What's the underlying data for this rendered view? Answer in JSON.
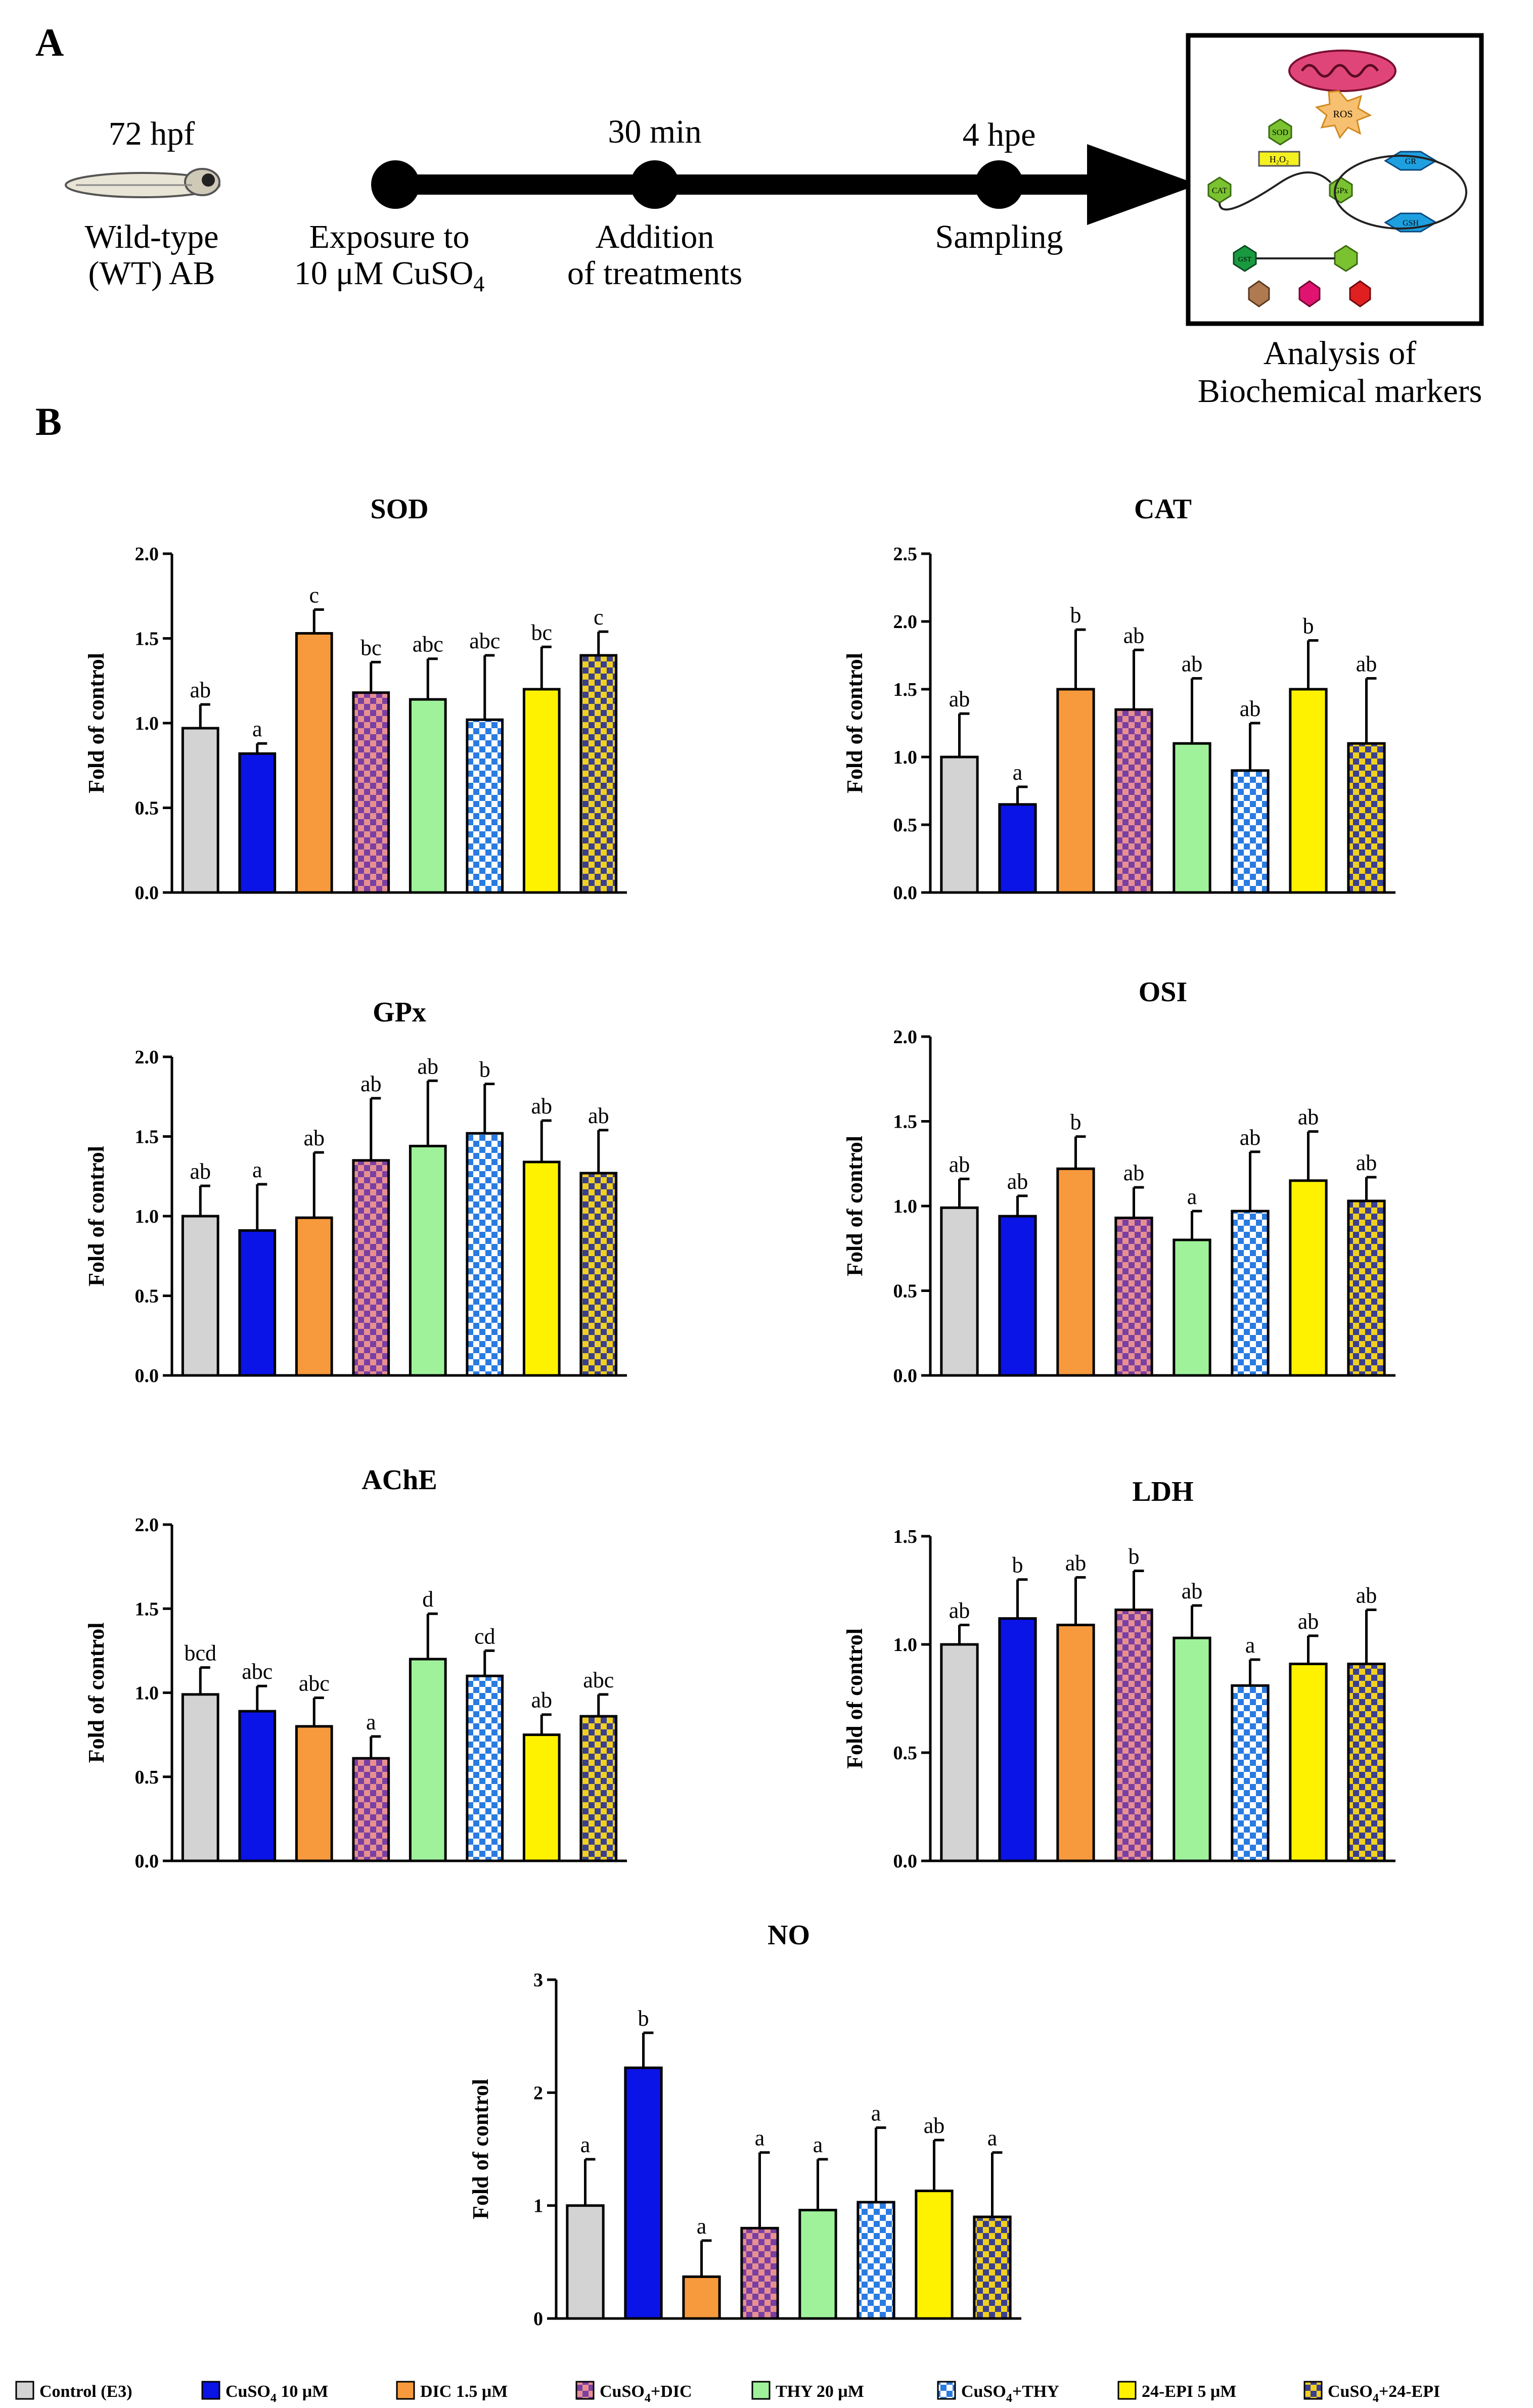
{
  "panels": {
    "a": "A",
    "b": "B"
  },
  "timeline": {
    "larva_age": "72 hpf",
    "strain_line1": "Wild-type",
    "strain_line2": "(WT) AB",
    "step1_line1": "Exposure to",
    "step1_line2_prefix": "10 μM CuSO",
    "step1_line2_sub": "4",
    "step2_time": "30 min",
    "step2_line1": "Addition",
    "step2_line2": "of treatments",
    "step3_time": "4 hpe",
    "step3_label": "Sampling",
    "analysis_line1": "Analysis of",
    "analysis_line2": "Biochemical markers",
    "diagram_texts": {
      "ros": "ROS",
      "h2o2": "H₂O₂",
      "enzyme_a": "GR",
      "enzyme_b": "GSH",
      "enzyme_c": "GST",
      "n1": "SOD",
      "n2": "CAT",
      "n3": "GPx"
    }
  },
  "colors": {
    "control": "#d3d3d3",
    "cuso4": "#0a14e6",
    "dic": "#f79a3d",
    "cuso4_dic_a": "#7a3fa3",
    "cuso4_dic_b": "#e89090",
    "thy": "#9ff29a",
    "cuso4_thy_a": "#2a7be0",
    "cuso4_thy_b": "#ffffff",
    "epi": "#fff200",
    "cuso4_epi_a": "#3b3f8f",
    "cuso4_epi_b": "#f0d020"
  },
  "legend": [
    {
      "text": "Control (E3)",
      "fill": "control"
    },
    {
      "text": "CuSO",
      "sub": "4",
      "after": " 10 μM",
      "fill": "cuso4"
    },
    {
      "text": "DIC 1.5 μM",
      "fill": "dic"
    },
    {
      "text": "CuSO",
      "sub": "4",
      "after": "+DIC",
      "fill": "cuso4_dic"
    },
    {
      "text": "THY 20 μM",
      "fill": "thy"
    },
    {
      "text": "CuSO",
      "sub": "4",
      "after": "+THY",
      "fill": "cuso4_thy"
    },
    {
      "text": "24-EPI 5 μM",
      "fill": "epi"
    },
    {
      "text": "CuSO",
      "sub": "4",
      "after": "+24-EPI",
      "fill": "cuso4_epi"
    }
  ],
  "chart_data": [
    {
      "type": "bar",
      "title": "SOD",
      "ylabel": "Fold of control",
      "ylim": [
        0,
        2.0
      ],
      "yticks": [
        "0.0",
        "0.5",
        "1.0",
        "1.5",
        "2.0"
      ],
      "categories": [
        "Control (E3)",
        "CuSO4 10 μM",
        "DIC 1.5 μM",
        "CuSO4+DIC",
        "THY 20 μM",
        "CuSO4+THY",
        "24-EPI 5 μM",
        "CuSO4+24-EPI"
      ],
      "values": [
        0.97,
        0.82,
        1.53,
        1.18,
        1.14,
        1.02,
        1.2,
        1.4
      ],
      "errors": [
        0.14,
        0.06,
        0.14,
        0.18,
        0.24,
        0.38,
        0.25,
        0.14
      ],
      "letters": [
        "ab",
        "a",
        "c",
        "bc",
        "abc",
        "abc",
        "bc",
        "c"
      ]
    },
    {
      "type": "bar",
      "title": "CAT",
      "ylabel": "Fold of control",
      "ylim": [
        0,
        2.5
      ],
      "yticks": [
        "0.0",
        "0.5",
        "1.0",
        "1.5",
        "2.0",
        "2.5"
      ],
      "categories": [
        "Control (E3)",
        "CuSO4 10 μM",
        "DIC 1.5 μM",
        "CuSO4+DIC",
        "THY 20 μM",
        "CuSO4+THY",
        "24-EPI 5 μM",
        "CuSO4+24-EPI"
      ],
      "values": [
        1.0,
        0.65,
        1.5,
        1.35,
        1.1,
        0.9,
        1.5,
        1.1
      ],
      "errors": [
        0.32,
        0.13,
        0.44,
        0.44,
        0.48,
        0.35,
        0.36,
        0.48
      ],
      "letters": [
        "ab",
        "a",
        "b",
        "ab",
        "ab",
        "ab",
        "b",
        "ab"
      ]
    },
    {
      "type": "bar",
      "title": "GPx",
      "ylabel": "Fold of control",
      "ylim": [
        0,
        2.0
      ],
      "yticks": [
        "0.0",
        "0.5",
        "1.0",
        "1.5",
        "2.0"
      ],
      "categories": [
        "Control (E3)",
        "CuSO4 10 μM",
        "DIC 1.5 μM",
        "CuSO4+DIC",
        "THY 20 μM",
        "CuSO4+THY",
        "24-EPI 5 μM",
        "CuSO4+24-EPI"
      ],
      "values": [
        1.0,
        0.91,
        0.99,
        1.35,
        1.44,
        1.52,
        1.34,
        1.27
      ],
      "errors": [
        0.19,
        0.29,
        0.41,
        0.39,
        0.41,
        0.31,
        0.26,
        0.27
      ],
      "letters": [
        "ab",
        "a",
        "ab",
        "ab",
        "ab",
        "b",
        "ab",
        "ab"
      ]
    },
    {
      "type": "bar",
      "title": "OSI",
      "ylabel": "Fold of control",
      "ylim": [
        0,
        2.0
      ],
      "yticks": [
        "0.0",
        "0.5",
        "1.0",
        "1.5",
        "2.0"
      ],
      "categories": [
        "Control (E3)",
        "CuSO4 10 μM",
        "DIC 1.5 μM",
        "CuSO4+DIC",
        "THY 20 μM",
        "CuSO4+THY",
        "24-EPI 5 μM",
        "CuSO4+24-EPI"
      ],
      "values": [
        0.99,
        0.94,
        1.22,
        0.93,
        0.8,
        0.97,
        1.15,
        1.03
      ],
      "errors": [
        0.17,
        0.12,
        0.19,
        0.18,
        0.17,
        0.35,
        0.29,
        0.14
      ],
      "letters": [
        "ab",
        "ab",
        "b",
        "ab",
        "a",
        "ab",
        "ab",
        "ab"
      ]
    },
    {
      "type": "bar",
      "title": "AChE",
      "ylabel": "Fold of control",
      "ylim": [
        0,
        2.0
      ],
      "yticks": [
        "0.0",
        "0.5",
        "1.0",
        "1.5",
        "2.0"
      ],
      "categories": [
        "Control (E3)",
        "CuSO4 10 μM",
        "DIC 1.5 μM",
        "CuSO4+DIC",
        "THY 20 μM",
        "CuSO4+THY",
        "24-EPI 5 μM",
        "CuSO4+24-EPI"
      ],
      "values": [
        0.99,
        0.89,
        0.8,
        0.61,
        1.2,
        1.1,
        0.75,
        0.86
      ],
      "errors": [
        0.16,
        0.15,
        0.17,
        0.13,
        0.27,
        0.15,
        0.12,
        0.13
      ],
      "letters": [
        "bcd",
        "abc",
        "abc",
        "a",
        "d",
        "cd",
        "ab",
        "abc"
      ]
    },
    {
      "type": "bar",
      "title": "LDH",
      "ylabel": "Fold of control",
      "ylim": [
        0,
        1.5
      ],
      "yticks": [
        "0.0",
        "0.5",
        "1.0",
        "1.5"
      ],
      "categories": [
        "Control (E3)",
        "CuSO4 10 μM",
        "DIC 1.5 μM",
        "CuSO4+DIC",
        "THY 20 μM",
        "CuSO4+THY",
        "24-EPI 5 μM",
        "CuSO4+24-EPI"
      ],
      "values": [
        1.0,
        1.12,
        1.09,
        1.16,
        1.03,
        0.81,
        0.91,
        0.91
      ],
      "errors": [
        0.09,
        0.18,
        0.22,
        0.18,
        0.15,
        0.12,
        0.13,
        0.25
      ],
      "letters": [
        "ab",
        "b",
        "ab",
        "b",
        "ab",
        "a",
        "ab",
        "ab"
      ]
    },
    {
      "type": "bar",
      "title": "NO",
      "ylabel": "Fold of control",
      "ylim": [
        0,
        3
      ],
      "yticks": [
        "0",
        "1",
        "2",
        "3"
      ],
      "categories": [
        "Control (E3)",
        "CuSO4 10 μM",
        "DIC 1.5 μM",
        "CuSO4+DIC",
        "THY 20 μM",
        "CuSO4+THY",
        "24-EPI 5 μM",
        "CuSO4+24-EPI"
      ],
      "values": [
        1.0,
        2.22,
        0.37,
        0.8,
        0.96,
        1.03,
        1.13,
        0.9
      ],
      "errors": [
        0.41,
        0.31,
        0.32,
        0.67,
        0.45,
        0.66,
        0.45,
        0.57
      ],
      "letters": [
        "a",
        "b",
        "a",
        "a",
        "a",
        "a",
        "ab",
        "a"
      ]
    }
  ]
}
